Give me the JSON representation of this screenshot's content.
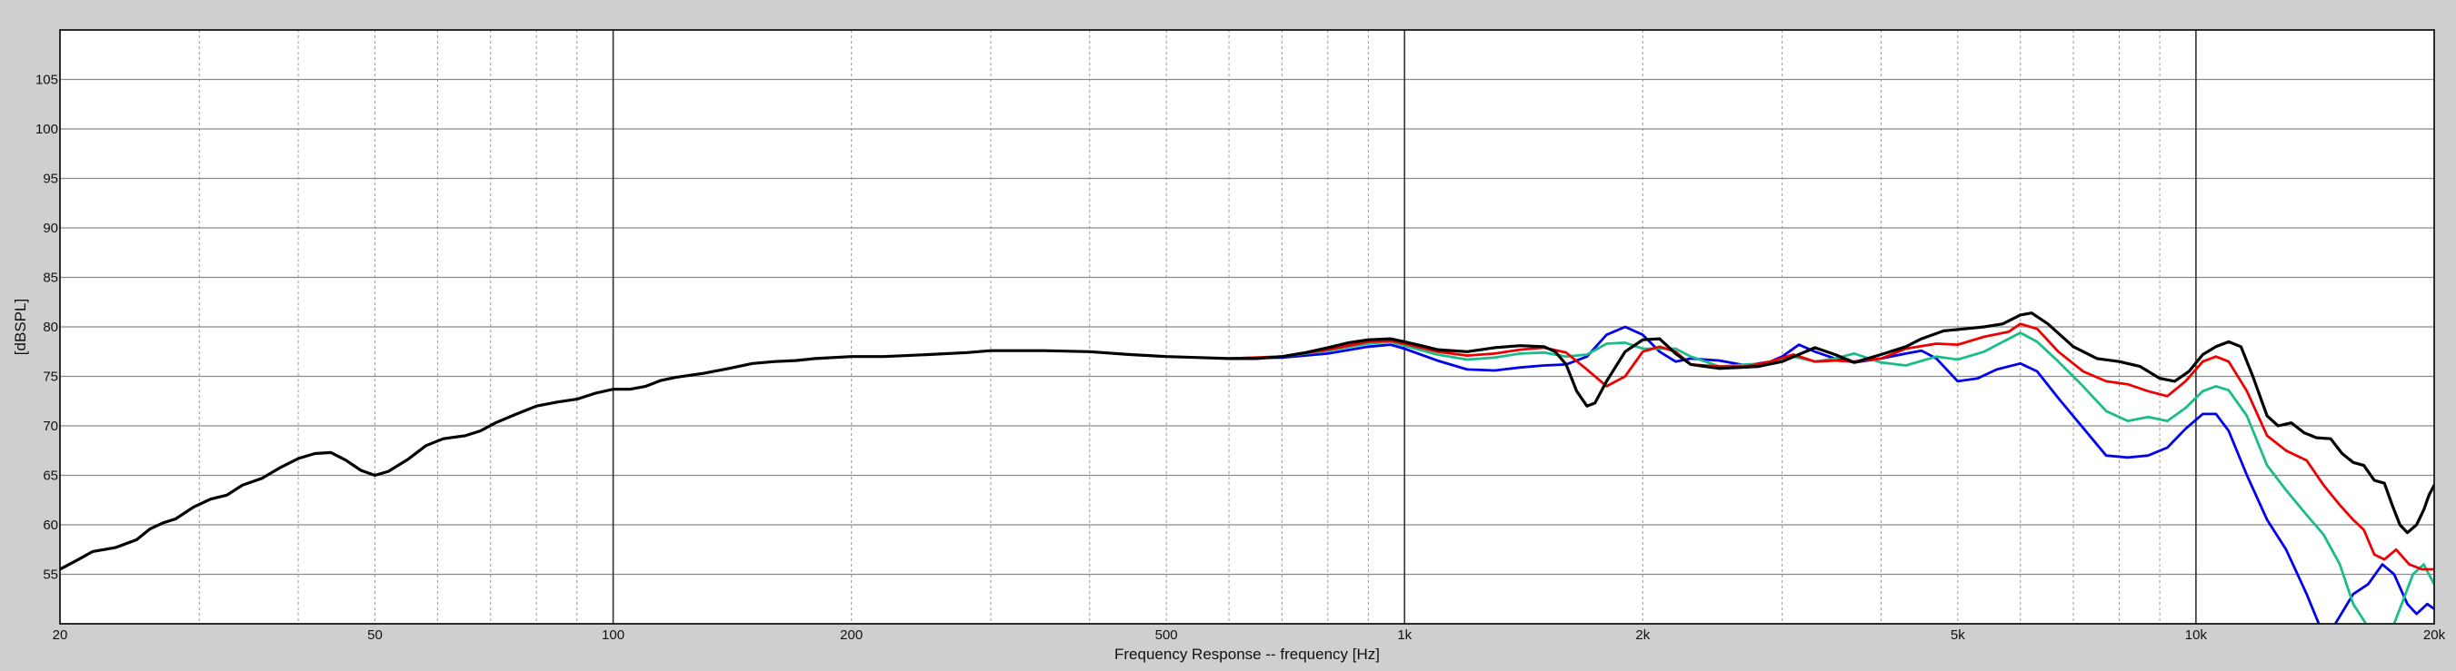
{
  "chart_data": {
    "type": "line",
    "title": "",
    "xlabel": "Frequency Response -- frequency [Hz]",
    "ylabel": "[dBSPL]",
    "x_scale": "log",
    "xlim": [
      20,
      20000
    ],
    "ylim": [
      50,
      110
    ],
    "grid": true,
    "legend": "none",
    "x_ticks": [
      {
        "value": 20,
        "label": "20"
      },
      {
        "value": 50,
        "label": "50"
      },
      {
        "value": 100,
        "label": "100"
      },
      {
        "value": 200,
        "label": "200"
      },
      {
        "value": 500,
        "label": "500"
      },
      {
        "value": 1000,
        "label": "1k"
      },
      {
        "value": 2000,
        "label": "2k"
      },
      {
        "value": 5000,
        "label": "5k"
      },
      {
        "value": 10000,
        "label": "10k"
      },
      {
        "value": 20000,
        "label": "20k"
      }
    ],
    "y_ticks": [
      {
        "value": 55,
        "label": "55"
      },
      {
        "value": 60,
        "label": "60"
      },
      {
        "value": 65,
        "label": "65"
      },
      {
        "value": 70,
        "label": "70"
      },
      {
        "value": 75,
        "label": "75"
      },
      {
        "value": 80,
        "label": "80"
      },
      {
        "value": 85,
        "label": "85"
      },
      {
        "value": 90,
        "label": "90"
      },
      {
        "value": 95,
        "label": "95"
      },
      {
        "value": 100,
        "label": "100"
      },
      {
        "value": 105,
        "label": "105"
      }
    ],
    "series": [
      {
        "color": "#0000ee",
        "points": [
          [
            600,
            76.8
          ],
          [
            700,
            76.9
          ],
          [
            800,
            77.3
          ],
          [
            900,
            78.0
          ],
          [
            960,
            78.2
          ],
          [
            1000,
            77.8
          ],
          [
            1100,
            76.6
          ],
          [
            1200,
            75.7
          ],
          [
            1300,
            75.6
          ],
          [
            1400,
            75.9
          ],
          [
            1500,
            76.1
          ],
          [
            1600,
            76.2
          ],
          [
            1700,
            77.0
          ],
          [
            1800,
            79.2
          ],
          [
            1900,
            80.0
          ],
          [
            2000,
            79.2
          ],
          [
            2100,
            77.5
          ],
          [
            2200,
            76.5
          ],
          [
            2300,
            76.8
          ],
          [
            2500,
            76.6
          ],
          [
            2700,
            76.1
          ],
          [
            2900,
            76.5
          ],
          [
            3000,
            77.0
          ],
          [
            3150,
            78.2
          ],
          [
            3300,
            77.5
          ],
          [
            3500,
            76.8
          ],
          [
            3700,
            76.4
          ],
          [
            4000,
            76.8
          ],
          [
            4300,
            77.3
          ],
          [
            4500,
            77.6
          ],
          [
            4700,
            76.8
          ],
          [
            5000,
            74.5
          ],
          [
            5300,
            74.8
          ],
          [
            5600,
            75.7
          ],
          [
            6000,
            76.3
          ],
          [
            6300,
            75.5
          ],
          [
            6700,
            72.8
          ],
          [
            7200,
            69.8
          ],
          [
            7700,
            67.0
          ],
          [
            8200,
            66.8
          ],
          [
            8700,
            67.0
          ],
          [
            9200,
            67.8
          ],
          [
            9700,
            69.7
          ],
          [
            10200,
            71.2
          ],
          [
            10600,
            71.2
          ],
          [
            11000,
            69.5
          ],
          [
            11600,
            65.0
          ],
          [
            12300,
            60.5
          ],
          [
            13000,
            57.5
          ],
          [
            13800,
            53.0
          ],
          [
            14300,
            50.0
          ],
          [
            null,
            null
          ],
          [
            15000,
            50.0
          ],
          [
            15800,
            53.0
          ],
          [
            16500,
            54.0
          ],
          [
            17200,
            56.0
          ],
          [
            17800,
            55.0
          ],
          [
            18500,
            52.0
          ],
          [
            19000,
            51.0
          ],
          [
            19600,
            52.0
          ],
          [
            20000,
            51.5
          ]
        ]
      },
      {
        "color": "#1abc8a",
        "points": [
          [
            600,
            76.8
          ],
          [
            700,
            77.0
          ],
          [
            800,
            77.6
          ],
          [
            900,
            78.3
          ],
          [
            960,
            78.5
          ],
          [
            1000,
            78.1
          ],
          [
            1100,
            77.2
          ],
          [
            1200,
            76.7
          ],
          [
            1300,
            76.9
          ],
          [
            1400,
            77.3
          ],
          [
            1500,
            77.4
          ],
          [
            1600,
            77.0
          ],
          [
            1700,
            77.2
          ],
          [
            1800,
            78.3
          ],
          [
            1900,
            78.4
          ],
          [
            2000,
            77.8
          ],
          [
            2200,
            77.8
          ],
          [
            2300,
            77.0
          ],
          [
            2500,
            76.0
          ],
          [
            2700,
            76.2
          ],
          [
            2900,
            76.3
          ],
          [
            3100,
            77.0
          ],
          [
            3300,
            76.5
          ],
          [
            3500,
            76.8
          ],
          [
            3700,
            77.3
          ],
          [
            4000,
            76.4
          ],
          [
            4300,
            76.1
          ],
          [
            4700,
            77.0
          ],
          [
            5000,
            76.7
          ],
          [
            5400,
            77.5
          ],
          [
            5800,
            78.8
          ],
          [
            6000,
            79.4
          ],
          [
            6300,
            78.5
          ],
          [
            6700,
            76.5
          ],
          [
            7200,
            74.0
          ],
          [
            7700,
            71.5
          ],
          [
            8200,
            70.5
          ],
          [
            8700,
            70.9
          ],
          [
            9200,
            70.5
          ],
          [
            9700,
            71.8
          ],
          [
            10200,
            73.5
          ],
          [
            10600,
            74.0
          ],
          [
            11000,
            73.6
          ],
          [
            11600,
            71.0
          ],
          [
            12300,
            66.0
          ],
          [
            13000,
            63.5
          ],
          [
            13800,
            61.0
          ],
          [
            14500,
            59.0
          ],
          [
            15200,
            56.0
          ],
          [
            15800,
            52.0
          ],
          [
            16400,
            50.0
          ],
          [
            null,
            null
          ],
          [
            17800,
            50.0
          ],
          [
            18300,
            52.5
          ],
          [
            18800,
            55.0
          ],
          [
            19400,
            56.0
          ],
          [
            20000,
            54.0
          ]
        ]
      },
      {
        "color": "#ee0000",
        "points": [
          [
            600,
            76.8
          ],
          [
            700,
            77.0
          ],
          [
            800,
            77.7
          ],
          [
            900,
            78.5
          ],
          [
            960,
            78.6
          ],
          [
            1000,
            78.3
          ],
          [
            1100,
            77.5
          ],
          [
            1200,
            77.1
          ],
          [
            1300,
            77.3
          ],
          [
            1400,
            77.7
          ],
          [
            1500,
            77.9
          ],
          [
            1600,
            77.4
          ],
          [
            1700,
            75.7
          ],
          [
            1800,
            74.0
          ],
          [
            1900,
            75.0
          ],
          [
            2000,
            77.5
          ],
          [
            2100,
            78.0
          ],
          [
            2200,
            77.5
          ],
          [
            2300,
            76.2
          ],
          [
            2500,
            76.0
          ],
          [
            2700,
            76.0
          ],
          [
            2900,
            76.5
          ],
          [
            3100,
            77.2
          ],
          [
            3300,
            76.5
          ],
          [
            3500,
            76.6
          ],
          [
            3700,
            76.5
          ],
          [
            4000,
            76.8
          ],
          [
            4300,
            77.8
          ],
          [
            4700,
            78.3
          ],
          [
            5000,
            78.2
          ],
          [
            5400,
            79.0
          ],
          [
            5800,
            79.5
          ],
          [
            6000,
            80.3
          ],
          [
            6300,
            79.8
          ],
          [
            6700,
            77.5
          ],
          [
            7200,
            75.5
          ],
          [
            7700,
            74.5
          ],
          [
            8200,
            74.2
          ],
          [
            8700,
            73.5
          ],
          [
            9200,
            73.0
          ],
          [
            9700,
            74.5
          ],
          [
            10200,
            76.5
          ],
          [
            10600,
            77.0
          ],
          [
            11000,
            76.5
          ],
          [
            11600,
            73.5
          ],
          [
            12300,
            69.0
          ],
          [
            13000,
            67.5
          ],
          [
            13800,
            66.5
          ],
          [
            14500,
            64.0
          ],
          [
            15200,
            62.0
          ],
          [
            15800,
            60.5
          ],
          [
            16300,
            59.5
          ],
          [
            16800,
            57.0
          ],
          [
            17300,
            56.5
          ],
          [
            17900,
            57.5
          ],
          [
            18600,
            56.0
          ],
          [
            19300,
            55.5
          ],
          [
            20000,
            55.5
          ]
        ]
      },
      {
        "color": "#000000",
        "points": [
          [
            20,
            55.5
          ],
          [
            21,
            56.4
          ],
          [
            22,
            57.3
          ],
          [
            23.5,
            57.7
          ],
          [
            25,
            58.5
          ],
          [
            26,
            59.6
          ],
          [
            27,
            60.2
          ],
          [
            28,
            60.6
          ],
          [
            29.5,
            61.8
          ],
          [
            31,
            62.6
          ],
          [
            32.5,
            63.0
          ],
          [
            34,
            64.0
          ],
          [
            36,
            64.7
          ],
          [
            38,
            65.8
          ],
          [
            40,
            66.7
          ],
          [
            42,
            67.2
          ],
          [
            44,
            67.3
          ],
          [
            46,
            66.5
          ],
          [
            48,
            65.5
          ],
          [
            50,
            65.0
          ],
          [
            52,
            65.4
          ],
          [
            55,
            66.6
          ],
          [
            58,
            68.0
          ],
          [
            61,
            68.7
          ],
          [
            65,
            69.0
          ],
          [
            68,
            69.5
          ],
          [
            71,
            70.3
          ],
          [
            75,
            71.1
          ],
          [
            80,
            72.0
          ],
          [
            85,
            72.4
          ],
          [
            90,
            72.7
          ],
          [
            95,
            73.3
          ],
          [
            100,
            73.7
          ],
          [
            105,
            73.7
          ],
          [
            110,
            74.0
          ],
          [
            115,
            74.6
          ],
          [
            120,
            74.9
          ],
          [
            130,
            75.3
          ],
          [
            140,
            75.8
          ],
          [
            150,
            76.3
          ],
          [
            160,
            76.5
          ],
          [
            170,
            76.6
          ],
          [
            180,
            76.8
          ],
          [
            200,
            77.0
          ],
          [
            220,
            77.0
          ],
          [
            250,
            77.2
          ],
          [
            280,
            77.4
          ],
          [
            300,
            77.6
          ],
          [
            350,
            77.6
          ],
          [
            400,
            77.5
          ],
          [
            450,
            77.2
          ],
          [
            500,
            77.0
          ],
          [
            550,
            76.9
          ],
          [
            600,
            76.8
          ],
          [
            650,
            76.8
          ],
          [
            700,
            77.0
          ],
          [
            750,
            77.4
          ],
          [
            800,
            77.9
          ],
          [
            850,
            78.4
          ],
          [
            900,
            78.7
          ],
          [
            960,
            78.8
          ],
          [
            1000,
            78.5
          ],
          [
            1050,
            78.1
          ],
          [
            1100,
            77.7
          ],
          [
            1200,
            77.5
          ],
          [
            1300,
            77.9
          ],
          [
            1400,
            78.1
          ],
          [
            1500,
            78.0
          ],
          [
            1550,
            77.5
          ],
          [
            1600,
            76.2
          ],
          [
            1650,
            73.5
          ],
          [
            1700,
            72.0
          ],
          [
            1740,
            72.3
          ],
          [
            1800,
            74.5
          ],
          [
            1900,
            77.5
          ],
          [
            2000,
            78.7
          ],
          [
            2100,
            78.8
          ],
          [
            2200,
            77.3
          ],
          [
            2300,
            76.2
          ],
          [
            2500,
            75.8
          ],
          [
            2800,
            76.0
          ],
          [
            3000,
            76.5
          ],
          [
            3300,
            77.9
          ],
          [
            3500,
            77.2
          ],
          [
            3700,
            76.4
          ],
          [
            4000,
            77.2
          ],
          [
            4300,
            78.0
          ],
          [
            4500,
            78.8
          ],
          [
            4800,
            79.6
          ],
          [
            5100,
            79.8
          ],
          [
            5400,
            80.0
          ],
          [
            5700,
            80.3
          ],
          [
            6000,
            81.2
          ],
          [
            6200,
            81.4
          ],
          [
            6500,
            80.3
          ],
          [
            7000,
            78.0
          ],
          [
            7500,
            76.8
          ],
          [
            8000,
            76.5
          ],
          [
            8500,
            76.0
          ],
          [
            9000,
            74.8
          ],
          [
            9400,
            74.5
          ],
          [
            9800,
            75.5
          ],
          [
            10200,
            77.2
          ],
          [
            10600,
            78.0
          ],
          [
            11000,
            78.5
          ],
          [
            11400,
            78.0
          ],
          [
            11800,
            75.0
          ],
          [
            12300,
            71.0
          ],
          [
            12700,
            70.0
          ],
          [
            13200,
            70.3
          ],
          [
            13700,
            69.3
          ],
          [
            14200,
            68.8
          ],
          [
            14800,
            68.7
          ],
          [
            15300,
            67.2
          ],
          [
            15800,
            66.3
          ],
          [
            16300,
            66.0
          ],
          [
            16800,
            64.5
          ],
          [
            17300,
            64.2
          ],
          [
            17700,
            62.0
          ],
          [
            18100,
            60.0
          ],
          [
            18500,
            59.2
          ],
          [
            19000,
            60.0
          ],
          [
            19400,
            61.5
          ],
          [
            19700,
            63.0
          ],
          [
            20000,
            64.0
          ]
        ]
      }
    ]
  }
}
